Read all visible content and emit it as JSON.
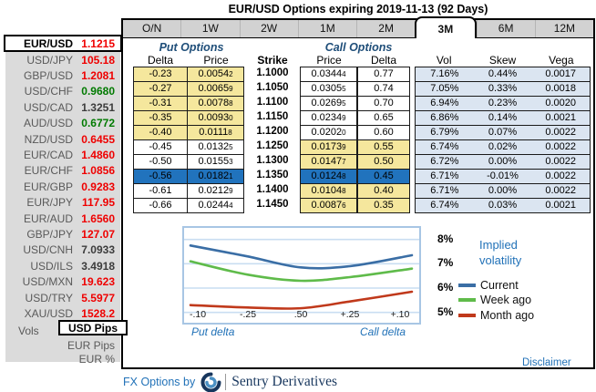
{
  "title": "EUR/USD Options expiring 2019-11-13 (92 Days)",
  "sidebar": {
    "pairs": [
      {
        "label": "EUR/USD",
        "value": "1.1215",
        "color": "red",
        "selected": true
      },
      {
        "label": "USD/JPY",
        "value": "105.18",
        "color": "red"
      },
      {
        "label": "GBP/USD",
        "value": "1.2081",
        "color": "red"
      },
      {
        "label": "USD/CHF",
        "value": "0.9680",
        "color": "green"
      },
      {
        "label": "USD/CAD",
        "value": "1.3251",
        "color": "dark"
      },
      {
        "label": "AUD/USD",
        "value": "0.6772",
        "color": "green"
      },
      {
        "label": "NZD/USD",
        "value": "0.6455",
        "color": "red"
      },
      {
        "label": "EUR/CAD",
        "value": "1.4860",
        "color": "red"
      },
      {
        "label": "EUR/CHF",
        "value": "1.0856",
        "color": "red"
      },
      {
        "label": "EUR/GBP",
        "value": "0.9283",
        "color": "red"
      },
      {
        "label": "EUR/JPY",
        "value": "117.95",
        "color": "red"
      },
      {
        "label": "EUR/AUD",
        "value": "1.6560",
        "color": "red"
      },
      {
        "label": "GBP/JPY",
        "value": "127.07",
        "color": "red"
      },
      {
        "label": "USD/CNH",
        "value": "7.0933",
        "color": "dark"
      },
      {
        "label": "USD/ILS",
        "value": "3.4918",
        "color": "dark"
      },
      {
        "label": "USD/MXN",
        "value": "19.623",
        "color": "red"
      },
      {
        "label": "USD/TRY",
        "value": "5.5977",
        "color": "red"
      },
      {
        "label": "XAU/USD",
        "value": "1528.2",
        "color": "red"
      }
    ],
    "vols": {
      "label": "Vols",
      "selected": "USD Pips",
      "options": [
        "EUR Pips",
        "EUR %"
      ]
    }
  },
  "tabs": {
    "items": [
      "O/N",
      "1W",
      "2W",
      "1M",
      "2M",
      "3M",
      "6M",
      "12M"
    ],
    "active": "3M"
  },
  "table": {
    "group_headers": {
      "put": "Put Options",
      "call": "Call Options"
    },
    "columns": [
      "Delta",
      "Price",
      "Strike",
      "Price",
      "Delta",
      "Vol",
      "Skew",
      "Vega"
    ],
    "rows": [
      {
        "put_delta": "-0.23",
        "put_price": "0.00542",
        "strike": "1.1000",
        "call_price": "0.03444",
        "call_delta": "0.77",
        "vol": "7.16%",
        "skew": "0.44%",
        "vega": "0.0017",
        "put_hl": "yellow",
        "call_hl": "none"
      },
      {
        "put_delta": "-0.27",
        "put_price": "0.00659",
        "strike": "1.1050",
        "call_price": "0.03055",
        "call_delta": "0.74",
        "vol": "7.05%",
        "skew": "0.33%",
        "vega": "0.0018",
        "put_hl": "yellow",
        "call_hl": "none"
      },
      {
        "put_delta": "-0.31",
        "put_price": "0.00788",
        "strike": "1.1100",
        "call_price": "0.02695",
        "call_delta": "0.70",
        "vol": "6.94%",
        "skew": "0.23%",
        "vega": "0.0020",
        "put_hl": "yellow",
        "call_hl": "none"
      },
      {
        "put_delta": "-0.35",
        "put_price": "0.00930",
        "strike": "1.1150",
        "call_price": "0.02349",
        "call_delta": "0.65",
        "vol": "6.86%",
        "skew": "0.14%",
        "vega": "0.0021",
        "put_hl": "yellow",
        "call_hl": "none"
      },
      {
        "put_delta": "-0.40",
        "put_price": "0.01118",
        "strike": "1.1200",
        "call_price": "0.02020",
        "call_delta": "0.60",
        "vol": "6.79%",
        "skew": "0.07%",
        "vega": "0.0022",
        "put_hl": "yellow",
        "call_hl": "none"
      },
      {
        "put_delta": "-0.45",
        "put_price": "0.01325",
        "strike": "1.1250",
        "call_price": "0.01739",
        "call_delta": "0.55",
        "vol": "6.74%",
        "skew": "0.02%",
        "vega": "0.0022",
        "put_hl": "none",
        "call_hl": "yellow"
      },
      {
        "put_delta": "-0.50",
        "put_price": "0.01553",
        "strike": "1.1300",
        "call_price": "0.01477",
        "call_delta": "0.50",
        "vol": "6.72%",
        "skew": "0.00%",
        "vega": "0.0022",
        "put_hl": "none",
        "call_hl": "yellow"
      },
      {
        "put_delta": "-0.56",
        "put_price": "0.01821",
        "strike": "1.1350",
        "call_price": "0.01248",
        "call_delta": "0.45",
        "vol": "6.71%",
        "skew": "-0.01%",
        "vega": "0.0022",
        "put_hl": "selected",
        "call_hl": "selected"
      },
      {
        "put_delta": "-0.61",
        "put_price": "0.02129",
        "strike": "1.1400",
        "call_price": "0.01048",
        "call_delta": "0.40",
        "vol": "6.71%",
        "skew": "0.00%",
        "vega": "0.0022",
        "put_hl": "none",
        "call_hl": "yellow"
      },
      {
        "put_delta": "-0.66",
        "put_price": "0.02444",
        "strike": "1.1450",
        "call_price": "0.00876",
        "call_delta": "0.35",
        "vol": "6.74%",
        "skew": "0.03%",
        "vega": "0.0021",
        "put_hl": "none",
        "call_hl": "yellow"
      }
    ]
  },
  "chart_data": {
    "type": "line",
    "title": "Implied volatility",
    "x_tick_labels": [
      "-.10",
      "-.25",
      ".50",
      "+.25",
      "+.10"
    ],
    "xlabel_left": "Put delta",
    "xlabel_right": "Call delta",
    "y_ticks": [
      8,
      7,
      6,
      5
    ],
    "y_tick_labels": [
      "8%",
      "7%",
      "6%",
      "5%"
    ],
    "ylim": [
      4.5,
      8.55
    ],
    "grid": true,
    "legend_position": "right",
    "series": [
      {
        "name": "Current",
        "color": "#3a6ea5",
        "values": [
          7.75,
          7.3,
          6.85,
          6.9,
          7.35
        ]
      },
      {
        "name": "Week ago",
        "color": "#5fbb4a",
        "values": [
          7.1,
          6.55,
          6.3,
          6.45,
          6.8
        ]
      },
      {
        "name": "Month ago",
        "color": "#c0391b",
        "values": [
          5.3,
          5.2,
          5.17,
          5.45,
          5.85
        ]
      }
    ]
  },
  "legend": {
    "title": "Implied volatility"
  },
  "disclaimer": {
    "label": "Disclaimer"
  },
  "footer": {
    "prefix": "FX Options by",
    "brand": "Sentry Derivatives"
  },
  "colors": {
    "highlight_yellow": "#f5e79d",
    "selected_row_blue": "#2173bd",
    "right_block_blue": "#dbe5f1",
    "link_blue": "#2272b8",
    "header_navy": "#1f4e79",
    "grid_blue": "#c9def2",
    "chart_border": "#a8c6e4"
  }
}
